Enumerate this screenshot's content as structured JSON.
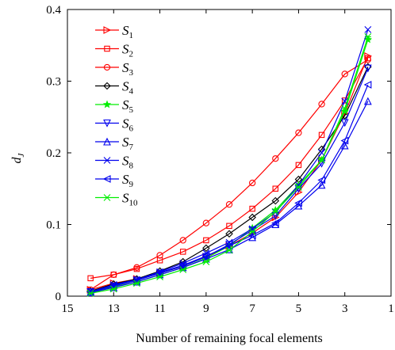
{
  "chart_data": {
    "type": "line",
    "xlabel": "Number of remaining focal elements",
    "ylabel": "d",
    "ylabel_sub": "J",
    "xlim": [
      15,
      1
    ],
    "ylim": [
      0,
      0.4
    ],
    "xticks": [
      15,
      13,
      11,
      9,
      7,
      5,
      3,
      1
    ],
    "yticks": [
      0,
      0.1,
      0.2,
      0.3,
      0.4
    ],
    "grid": false,
    "legend_position": "top-left",
    "x": [
      14,
      13,
      12,
      11,
      10,
      9,
      8,
      7,
      6,
      5,
      4,
      3,
      2
    ],
    "series": [
      {
        "name": "S",
        "sub": "1",
        "color": "#ff0000",
        "marker": "triangle-right",
        "values": [
          0.009,
          0.018,
          0.024,
          0.032,
          0.042,
          0.055,
          0.07,
          0.088,
          0.11,
          0.145,
          0.19,
          0.255,
          0.335
        ]
      },
      {
        "name": "S",
        "sub": "2",
        "color": "#ff0000",
        "marker": "square",
        "values": [
          0.025,
          0.03,
          0.038,
          0.05,
          0.062,
          0.078,
          0.098,
          0.122,
          0.15,
          0.183,
          0.225,
          0.273,
          0.332
        ]
      },
      {
        "name": "S",
        "sub": "3",
        "color": "#ff0000",
        "marker": "circle",
        "values": [
          0.009,
          0.03,
          0.04,
          0.057,
          0.078,
          0.102,
          0.128,
          0.158,
          0.192,
          0.228,
          0.268,
          0.31,
          0.33
        ]
      },
      {
        "name": "S",
        "sub": "4",
        "color": "#000000",
        "marker": "diamond",
        "values": [
          0.007,
          0.017,
          0.024,
          0.035,
          0.048,
          0.067,
          0.087,
          0.11,
          0.133,
          0.163,
          0.205,
          0.252,
          0.32
        ]
      },
      {
        "name": "S",
        "sub": "5",
        "color": "#00ee00",
        "marker": "star",
        "values": [
          0.005,
          0.013,
          0.02,
          0.03,
          0.04,
          0.053,
          0.07,
          0.095,
          0.12,
          0.155,
          0.19,
          0.258,
          0.358
        ]
      },
      {
        "name": "S",
        "sub": "6",
        "color": "#0000ee",
        "marker": "triangle-down",
        "values": [
          0.006,
          0.014,
          0.022,
          0.032,
          0.042,
          0.055,
          0.072,
          0.092,
          0.112,
          0.15,
          0.185,
          0.242,
          0.318
        ]
      },
      {
        "name": "S",
        "sub": "7",
        "color": "#0000ee",
        "marker": "triangle-up",
        "values": [
          0.005,
          0.012,
          0.02,
          0.03,
          0.04,
          0.052,
          0.065,
          0.082,
          0.1,
          0.126,
          0.155,
          0.21,
          0.272
        ]
      },
      {
        "name": "S",
        "sub": "8",
        "color": "#0000ee",
        "marker": "x",
        "values": [
          0.006,
          0.016,
          0.023,
          0.034,
          0.046,
          0.06,
          0.075,
          0.094,
          0.117,
          0.155,
          0.2,
          0.272,
          0.372
        ]
      },
      {
        "name": "S",
        "sub": "9",
        "color": "#0000ee",
        "marker": "triangle-left",
        "values": [
          0.006,
          0.015,
          0.022,
          0.033,
          0.043,
          0.056,
          0.07,
          0.085,
          0.102,
          0.13,
          0.162,
          0.217,
          0.295
        ]
      },
      {
        "name": "S",
        "sub": "10",
        "color": "#00ee00",
        "marker": "asterisk",
        "values": [
          0.004,
          0.01,
          0.018,
          0.027,
          0.037,
          0.048,
          0.064,
          0.09,
          0.118,
          0.152,
          0.19,
          0.262,
          0.362
        ]
      }
    ]
  }
}
